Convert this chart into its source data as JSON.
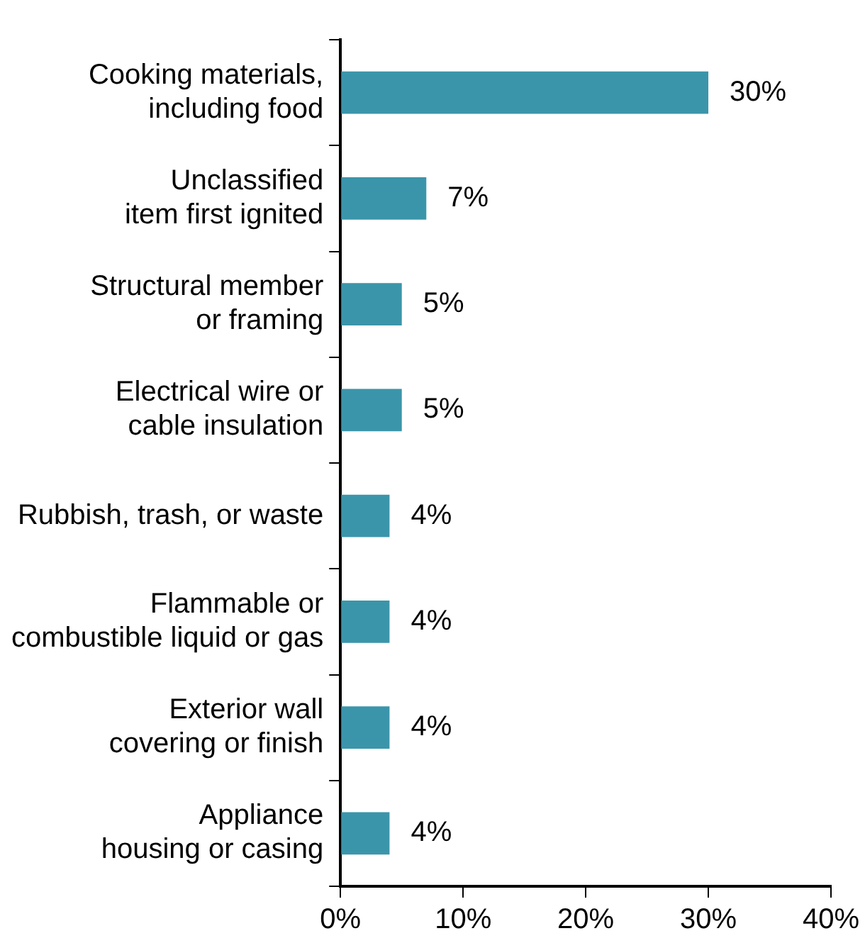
{
  "chart_data": {
    "type": "bar",
    "orientation": "horizontal",
    "categories": [
      "Cooking materials, including food",
      "Unclassified item first ignited",
      "Structural member or framing",
      "Electrical wire or cable insulation",
      "Rubbish, trash, or waste",
      "Flammable or combustible liquid or gas",
      "Exterior wall covering or finish",
      "Appliance housing or casing"
    ],
    "values": [
      30,
      7,
      5,
      5,
      4,
      4,
      4,
      4
    ],
    "value_labels": [
      "30%",
      "7%",
      "5%",
      "5%",
      "4%",
      "4%",
      "4%",
      "4%"
    ],
    "color": "#3b95aa",
    "xlim": [
      0,
      40
    ],
    "xticks": [
      {
        "value": 0,
        "label": "0%"
      },
      {
        "value": 10,
        "label": "10%"
      },
      {
        "value": 20,
        "label": "20%"
      },
      {
        "value": 30,
        "label": "30%"
      },
      {
        "value": 40,
        "label": "40%"
      }
    ],
    "grid": false,
    "legend": false
  }
}
